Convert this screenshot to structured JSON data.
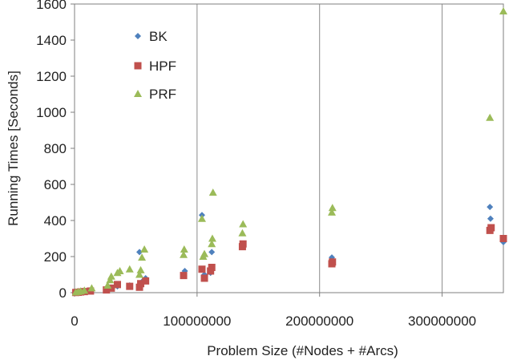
{
  "chart_data": {
    "type": "scatter",
    "xlabel": "Problem Size (#Nodes + #Arcs)",
    "ylabel": "Running Times [Seconds]",
    "xlim": [
      0,
      350000000
    ],
    "ylim": [
      0,
      1600
    ],
    "xticks": [
      0,
      100000000,
      200000000,
      300000000
    ],
    "xtick_labels": [
      "0",
      "100000000",
      "200000000",
      "300000000"
    ],
    "yticks": [
      0,
      200,
      400,
      600,
      800,
      1000,
      1200,
      1400,
      1600
    ],
    "ytick_labels": [
      "0",
      "200",
      "400",
      "600",
      "800",
      "1000",
      "1200",
      "1400",
      "1600"
    ],
    "grid": "vertical",
    "legend_position": "top-left",
    "series": [
      {
        "name": "BK",
        "marker": "diamond",
        "color": "#4F81BD",
        "points": [
          [
            1000000,
            1
          ],
          [
            2000000,
            3
          ],
          [
            4000000,
            5
          ],
          [
            6000000,
            6
          ],
          [
            9000000,
            8
          ],
          [
            14000000,
            12
          ],
          [
            27000000,
            20
          ],
          [
            30000000,
            28
          ],
          [
            35000000,
            35
          ],
          [
            45000000,
            40
          ],
          [
            53000000,
            225
          ],
          [
            55000000,
            60
          ],
          [
            58000000,
            80
          ],
          [
            90000000,
            120
          ],
          [
            104000000,
            430
          ],
          [
            106000000,
            100
          ],
          [
            111000000,
            110
          ],
          [
            112000000,
            225
          ],
          [
            137000000,
            265
          ],
          [
            210000000,
            195
          ],
          [
            339000000,
            475
          ],
          [
            339500000,
            410
          ],
          [
            350000000,
            280
          ]
        ]
      },
      {
        "name": "HPF",
        "marker": "square",
        "color": "#C0504D",
        "points": [
          [
            1000000,
            1
          ],
          [
            3000000,
            2
          ],
          [
            5000000,
            4
          ],
          [
            8000000,
            6
          ],
          [
            13000000,
            9
          ],
          [
            26000000,
            15
          ],
          [
            30000000,
            25
          ],
          [
            35000000,
            45
          ],
          [
            45000000,
            35
          ],
          [
            53000000,
            30
          ],
          [
            54000000,
            50
          ],
          [
            58000000,
            65
          ],
          [
            89000000,
            95
          ],
          [
            104000000,
            130
          ],
          [
            106000000,
            80
          ],
          [
            111000000,
            120
          ],
          [
            112000000,
            140
          ],
          [
            137000000,
            255
          ],
          [
            137500000,
            270
          ],
          [
            210000000,
            160
          ],
          [
            210500000,
            170
          ],
          [
            339000000,
            345
          ],
          [
            340000000,
            360
          ],
          [
            350000000,
            300
          ]
        ]
      },
      {
        "name": "PRF",
        "marker": "triangle",
        "color": "#9BBB59",
        "points": [
          [
            1000000,
            2
          ],
          [
            3000000,
            5
          ],
          [
            5000000,
            8
          ],
          [
            8000000,
            12
          ],
          [
            14000000,
            25
          ],
          [
            27000000,
            40
          ],
          [
            29000000,
            70
          ],
          [
            30000000,
            90
          ],
          [
            35000000,
            110
          ],
          [
            37000000,
            120
          ],
          [
            45000000,
            130
          ],
          [
            53000000,
            100
          ],
          [
            54000000,
            125
          ],
          [
            55000000,
            195
          ],
          [
            57000000,
            240
          ],
          [
            89000000,
            210
          ],
          [
            89500000,
            240
          ],
          [
            104000000,
            410
          ],
          [
            105000000,
            200
          ],
          [
            106000000,
            215
          ],
          [
            112000000,
            270
          ],
          [
            112500000,
            300
          ],
          [
            113000000,
            555
          ],
          [
            137000000,
            330
          ],
          [
            137500000,
            380
          ],
          [
            210000000,
            445
          ],
          [
            210500000,
            470
          ],
          [
            339000000,
            970
          ],
          [
            350000000,
            1560
          ]
        ]
      }
    ]
  }
}
